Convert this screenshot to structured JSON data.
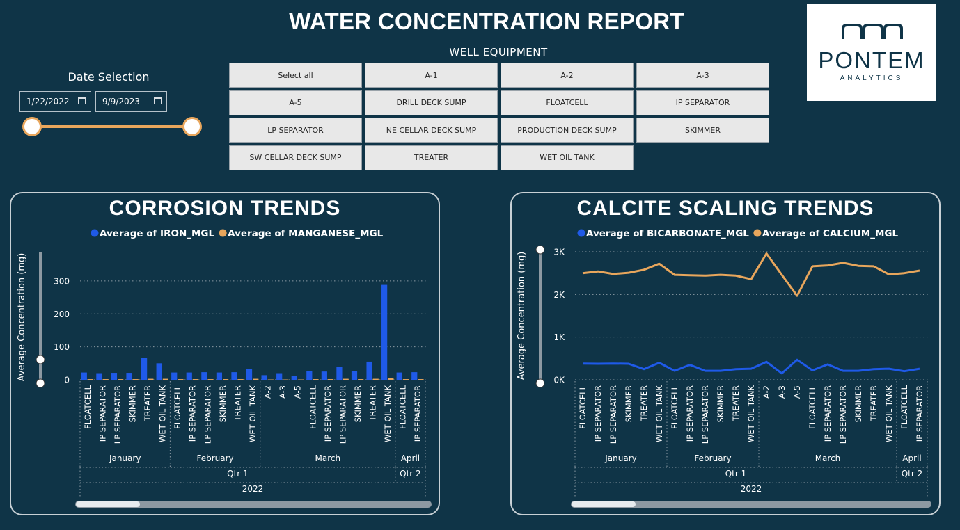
{
  "header": {
    "title": "WATER CONCENTRATION REPORT"
  },
  "logo": {
    "name": "PONTEM",
    "sub": "ANALYTICS",
    "icon": "pontem-arch-logo-icon"
  },
  "date_selection": {
    "label": "Date Selection",
    "start": "1/22/2022",
    "end": "9/9/2023",
    "accent": "#e8a65c"
  },
  "well_equipment": {
    "label": "WELL EQUIPMENT",
    "buttons": [
      "Select all",
      "A-1",
      "A-2",
      "A-3",
      "A-5",
      "DRILL DECK SUMP",
      "FLOATCELL",
      "IP SEPARATOR",
      "LP SEPARATOR",
      "NE CELLAR DECK SUMP",
      "PRODUCTION DECK SUMP",
      "SKIMMER",
      "SW CELLAR DECK SUMP",
      "TREATER",
      "WET OIL TANK"
    ]
  },
  "colors": {
    "background": "#0f3447",
    "blue": "#1f5ae8",
    "orange": "#e8a65c"
  },
  "chart_data": [
    {
      "type": "bar",
      "title": "CORROSION TRENDS",
      "ylabel": "Average Concentration (mg)",
      "ylim": [
        0,
        380
      ],
      "yticks": [
        0,
        100,
        200,
        300
      ],
      "ytick_labels": [
        "0",
        "100",
        "200",
        "300"
      ],
      "grid": true,
      "legend_position": "top",
      "categories": [
        "FLOATCELL",
        "IP SEPARATOR",
        "LP SEPARATOR",
        "SKIMMER",
        "TREATER",
        "WET OIL TANK",
        "FLOATCELL",
        "IP SEPARATOR",
        "LP SEPARATOR",
        "SKIMMER",
        "TREATER",
        "WET OIL TANK",
        "A-2",
        "A-3",
        "A-5",
        "FLOATCELL",
        "IP SEPARATOR",
        "LP SEPARATOR",
        "SKIMMER",
        "TREATER",
        "WET OIL TANK",
        "FLOATCELL",
        "IP SEPARATOR"
      ],
      "series": [
        {
          "name": "Average of IRON_MGL",
          "color": "#1f5ae8",
          "values": [
            22,
            20,
            21,
            21,
            66,
            50,
            22,
            22,
            23,
            22,
            23,
            32,
            14,
            20,
            12,
            26,
            25,
            38,
            27,
            55,
            288,
            22,
            23
          ]
        },
        {
          "name": "Average of MANGANESE_MGL",
          "color": "#e8a65c",
          "values": [
            2,
            2,
            2,
            2,
            3,
            3,
            2,
            2,
            2,
            2,
            2,
            3,
            1,
            1,
            1,
            2,
            2,
            3,
            2,
            3,
            5,
            2,
            2
          ]
        }
      ],
      "months": [
        {
          "label": "January",
          "count": 6
        },
        {
          "label": "February",
          "count": 6
        },
        {
          "label": "March",
          "count": 9
        },
        {
          "label": "April",
          "count": 2
        }
      ],
      "quarters": [
        {
          "label": "Qtr 1",
          "count": 21
        },
        {
          "label": "Qtr 2",
          "count": 2
        }
      ],
      "year": "2022"
    },
    {
      "type": "line",
      "title": "CALCITE SCALING TRENDS",
      "ylabel": "Average Concentration (mg)",
      "ylim": [
        0,
        3000
      ],
      "yticks": [
        0,
        1000,
        2000,
        3000
      ],
      "ytick_labels": [
        "0K",
        "1K",
        "2K",
        "3K"
      ],
      "grid": true,
      "legend_position": "top",
      "categories": [
        "FLOATCELL",
        "IP SEPARATOR",
        "LP SEPARATOR",
        "SKIMMER",
        "TREATER",
        "WET OIL TANK",
        "FLOATCELL",
        "IP SEPARATOR",
        "LP SEPARATOR",
        "SKIMMER",
        "TREATER",
        "WET OIL TANK",
        "A-2",
        "A-3",
        "A-5",
        "FLOATCELL",
        "IP SEPARATOR",
        "LP SEPARATOR",
        "SKIMMER",
        "TREATER",
        "WET OIL TANK",
        "FLOATCELL",
        "IP SEPARATOR"
      ],
      "series": [
        {
          "name": "Average of BICARBONATE_MGL",
          "color": "#1f5ae8",
          "values": [
            380,
            375,
            380,
            375,
            250,
            400,
            210,
            350,
            210,
            210,
            250,
            260,
            420,
            150,
            470,
            220,
            360,
            210,
            210,
            250,
            260,
            200,
            260
          ]
        },
        {
          "name": "Average of CALCIUM_MGL",
          "color": "#e8a65c",
          "values": [
            2500,
            2540,
            2480,
            2510,
            2580,
            2720,
            2460,
            2450,
            2440,
            2460,
            2440,
            2360,
            2960,
            2460,
            1970,
            2660,
            2680,
            2740,
            2670,
            2660,
            2470,
            2500,
            2560
          ]
        }
      ],
      "months": [
        {
          "label": "January",
          "count": 6
        },
        {
          "label": "February",
          "count": 6
        },
        {
          "label": "March",
          "count": 9
        },
        {
          "label": "April",
          "count": 2
        }
      ],
      "quarters": [
        {
          "label": "Qtr 1",
          "count": 21
        },
        {
          "label": "Qtr 2",
          "count": 2
        }
      ],
      "year": "2022"
    }
  ]
}
